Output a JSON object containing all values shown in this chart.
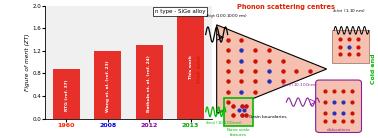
{
  "bar_categories": [
    "1960",
    "2008",
    "2012",
    "2013"
  ],
  "bar_values": [
    0.87,
    1.2,
    1.3,
    1.9
  ],
  "bar_color": "#e8302a",
  "bar_labels": [
    "RTG (ref. 37)",
    "Wang et. al. (ref. 23)",
    "Bathula et. al. (ref. 24)",
    "This work"
  ],
  "bar_label_colors": [
    "#ff2200",
    "#0000ee",
    "#8800aa",
    "#00aa00"
  ],
  "x_tick_colors": [
    "#ff2200",
    "#0000ee",
    "#8800aa",
    "#00aa00"
  ],
  "title": "n type - SiGe alloy",
  "ylabel": "Figure of merit (ZT)",
  "ylim": [
    0,
    2.0
  ],
  "yticks": [
    0.0,
    0.4,
    0.8,
    1.2,
    1.6,
    2.0
  ],
  "bg_color_left": "#f0f0f0",
  "bg_color_right": "#f0a090",
  "phonon_title": "Phonon scattering centres",
  "phonon_title_color": "#dd2200",
  "hot_end_color": "#dd2200",
  "cold_end_color": "#00bb00",
  "grain_label": "Grain boundaries",
  "disloc_label": "dislocations",
  "nano_label": "Nano scale\nfeatures",
  "dot_red": "#cc1100",
  "dot_blue": "#2233bb"
}
